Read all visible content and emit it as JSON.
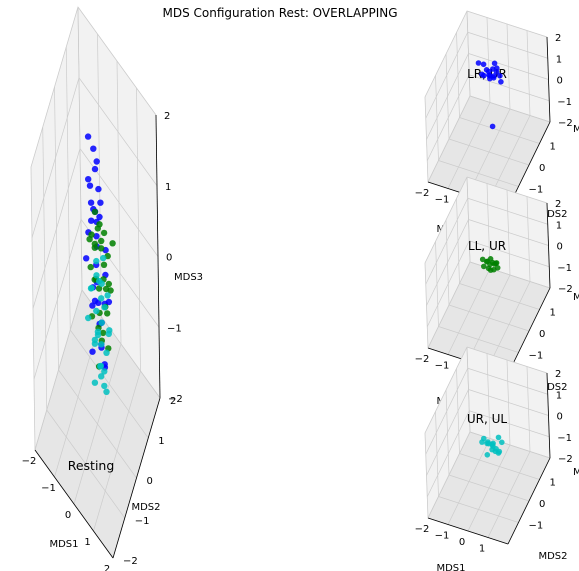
{
  "figure": {
    "title": "MDS Configuration Rest: OVERLAPPING"
  },
  "colors": {
    "pane": "#f2f2f2",
    "pane_dark": "#e6e6e6",
    "grid": "#cccccc",
    "blue": "#0000ff",
    "green": "#008000",
    "cyan": "#00bfbf"
  },
  "chart_data": [
    {
      "type": "scatter3d",
      "title": "",
      "annotation": "Resting",
      "xlabel": "MDS1",
      "ylabel": "MDS2",
      "zlabel": "MDS3",
      "xticks": [
        "−2",
        "−1",
        "0",
        "1",
        "2"
      ],
      "yticks": [
        "−2",
        "−1",
        "0",
        "1",
        "2"
      ],
      "zticks": [
        "−2",
        "−1",
        "0",
        "1",
        "2"
      ],
      "xlim": [
        -2,
        2
      ],
      "ylim": [
        -2,
        2
      ],
      "zlim": [
        -2,
        2
      ],
      "grid": true,
      "series": [
        {
          "color": "blue",
          "points": [
            [
              -0.6,
              0.5,
              1.55
            ],
            [
              -0.4,
              0.6,
              1.4
            ],
            [
              -0.2,
              0.4,
              1.3
            ],
            [
              -0.3,
              0.7,
              1.2
            ],
            [
              -0.5,
              0.3,
              1.1
            ],
            [
              -0.1,
              0.5,
              1.0
            ],
            [
              -0.3,
              0.2,
              0.9
            ],
            [
              -0.6,
              0.6,
              0.8
            ],
            [
              0.0,
              0.4,
              0.7
            ],
            [
              -0.2,
              0.8,
              0.6
            ],
            [
              -0.4,
              0.1,
              0.5
            ],
            [
              -0.5,
              0.5,
              0.4
            ],
            [
              -0.1,
              0.3,
              0.3
            ],
            [
              -0.3,
              0.6,
              0.2
            ],
            [
              0.1,
              0.7,
              0.1
            ],
            [
              -0.6,
              0.2,
              0.0
            ],
            [
              0.2,
              0.5,
              -0.1
            ],
            [
              -0.2,
              0.1,
              -0.2
            ],
            [
              -0.4,
              0.7,
              -0.3
            ],
            [
              0.0,
              0.2,
              -0.4
            ],
            [
              0.3,
              0.6,
              -0.5
            ],
            [
              -0.3,
              0.4,
              -0.6
            ],
            [
              0.1,
              0.3,
              -0.7
            ],
            [
              -0.5,
              0.5,
              -0.8
            ],
            [
              0.2,
              0.1,
              -0.9
            ],
            [
              -0.2,
              0.6,
              -1.0
            ],
            [
              0.0,
              0.4,
              -1.1
            ],
            [
              0.3,
              0.2,
              -1.2
            ],
            [
              -0.4,
              0.3,
              -1.3
            ],
            [
              0.1,
              0.5,
              -1.4
            ],
            [
              -0.1,
              0.2,
              0.85
            ],
            [
              -0.35,
              0.45,
              0.65
            ],
            [
              -0.25,
              0.55,
              0.45
            ],
            [
              -0.15,
              0.35,
              -0.25
            ],
            [
              0.05,
              0.65,
              -0.65
            ]
          ]
        },
        {
          "color": "green",
          "points": [
            [
              -0.3,
              0.5,
              0.6
            ],
            [
              -0.1,
              0.4,
              0.5
            ],
            [
              0.1,
              0.6,
              0.4
            ],
            [
              -0.2,
              0.3,
              0.3
            ],
            [
              0.0,
              0.5,
              0.2
            ],
            [
              0.2,
              0.4,
              0.1
            ],
            [
              -0.4,
              0.6,
              0.0
            ],
            [
              -0.1,
              0.2,
              -0.1
            ],
            [
              0.1,
              0.5,
              -0.2
            ],
            [
              -0.3,
              0.4,
              -0.3
            ],
            [
              0.3,
              0.3,
              -0.4
            ],
            [
              -0.2,
              0.6,
              -0.5
            ],
            [
              0.0,
              0.3,
              -0.6
            ],
            [
              0.2,
              0.6,
              -0.7
            ],
            [
              -0.4,
              0.3,
              -0.8
            ],
            [
              0.1,
              0.4,
              -0.9
            ],
            [
              -0.2,
              0.5,
              -1.0
            ],
            [
              0.3,
              0.5,
              -1.1
            ],
            [
              -0.1,
              0.6,
              -1.2
            ],
            [
              0.0,
              0.2,
              -1.3
            ],
            [
              0.4,
              0.4,
              0.3
            ],
            [
              -0.5,
              0.4,
              -0.2
            ],
            [
              0.4,
              0.6,
              -0.3
            ],
            [
              -0.6,
              0.5,
              0.1
            ],
            [
              0.5,
              0.3,
              0.0
            ],
            [
              0.2,
              0.2,
              0.55
            ],
            [
              -0.3,
              0.2,
              0.45
            ],
            [
              0.6,
              0.5,
              0.5
            ],
            [
              -0.2,
              0.7,
              0.35
            ],
            [
              0.1,
              0.7,
              -0.45
            ]
          ]
        },
        {
          "color": "cyan",
          "points": [
            [
              -0.2,
              0.4,
              -0.2
            ],
            [
              0.0,
              0.5,
              -0.3
            ],
            [
              -0.4,
              0.3,
              -0.4
            ],
            [
              0.2,
              0.4,
              -0.5
            ],
            [
              -0.1,
              0.6,
              -0.6
            ],
            [
              0.1,
              0.3,
              -0.7
            ],
            [
              -0.3,
              0.5,
              -0.8
            ],
            [
              0.3,
              0.6,
              -0.9
            ],
            [
              -0.2,
              0.2,
              -1.0
            ],
            [
              0.0,
              0.4,
              -1.1
            ],
            [
              0.2,
              0.5,
              -1.2
            ],
            [
              -0.4,
              0.5,
              -1.3
            ],
            [
              0.1,
              0.2,
              -1.4
            ],
            [
              -0.1,
              0.5,
              -1.5
            ],
            [
              0.3,
              0.3,
              -1.6
            ],
            [
              -0.3,
              0.3,
              -1.7
            ],
            [
              0.0,
              0.6,
              -1.8
            ],
            [
              -0.2,
              0.4,
              0.0
            ],
            [
              0.1,
              0.5,
              0.1
            ],
            [
              -0.5,
              0.4,
              -0.5
            ],
            [
              0.4,
              0.4,
              -0.8
            ],
            [
              -0.1,
              0.3,
              -0.95
            ],
            [
              0.2,
              0.3,
              -1.35
            ],
            [
              -0.3,
              0.6,
              -1.15
            ],
            [
              0.0,
              0.3,
              -0.15
            ],
            [
              -0.6,
              0.3,
              -0.9
            ],
            [
              0.3,
              0.5,
              -0.35
            ],
            [
              -0.2,
              0.6,
              -1.6
            ]
          ]
        }
      ]
    },
    {
      "type": "scatter3d",
      "title": "LR, UR",
      "xlabel": "MDS1",
      "ylabel": "MDS2",
      "zlabel": "M",
      "xticks": [
        "−2",
        "−1",
        "0",
        "1"
      ],
      "yticks": [
        "−1",
        "0",
        "1"
      ],
      "zticks": [
        "−2",
        "−1",
        "0",
        "1",
        "2"
      ],
      "xlim": [
        -2,
        2
      ],
      "ylim": [
        -2,
        2
      ],
      "zlim": [
        -2,
        2
      ],
      "grid": true,
      "series": [
        {
          "color": "blue",
          "points": [
            [
              -0.4,
              0.5,
              1.5
            ],
            [
              -0.2,
              0.4,
              1.4
            ],
            [
              0.0,
              0.6,
              1.3
            ],
            [
              -0.3,
              0.3,
              1.2
            ],
            [
              0.1,
              0.5,
              1.1
            ],
            [
              -0.1,
              0.4,
              1.35
            ],
            [
              0.2,
              0.3,
              1.25
            ],
            [
              -0.5,
              0.5,
              1.0
            ],
            [
              0.3,
              0.4,
              1.45
            ],
            [
              0.0,
              0.3,
              1.15
            ],
            [
              -0.2,
              0.6,
              0.95
            ],
            [
              0.4,
              0.5,
              1.2
            ],
            [
              -0.6,
              0.4,
              1.6
            ],
            [
              0.1,
              0.6,
              1.6
            ],
            [
              0.5,
              0.4,
              1.05
            ],
            [
              -0.1,
              0.5,
              1.05
            ],
            [
              0.2,
              0.6,
              1.4
            ],
            [
              0.0,
              0.4,
              -1.2
            ]
          ]
        }
      ]
    },
    {
      "type": "scatter3d",
      "title": "LL, UR",
      "xlabel": "MDS1",
      "ylabel": "MDS2",
      "zlabel": "M",
      "xticks": [
        "−2",
        "−1",
        "0",
        "1"
      ],
      "yticks": [
        "−1",
        "0",
        "1"
      ],
      "zticks": [
        "−2",
        "−1",
        "0",
        "1",
        "2"
      ],
      "xlim": [
        -2,
        2
      ],
      "ylim": [
        -2,
        2
      ],
      "zlim": [
        -2,
        2
      ],
      "grid": true,
      "series": [
        {
          "color": "green",
          "points": [
            [
              -0.2,
              0.4,
              0.2
            ],
            [
              0.0,
              0.5,
              0.1
            ],
            [
              -0.1,
              0.3,
              0.0
            ],
            [
              0.1,
              0.4,
              -0.1
            ],
            [
              -0.3,
              0.5,
              0.05
            ],
            [
              0.2,
              0.5,
              0.15
            ],
            [
              0.0,
              0.3,
              -0.05
            ],
            [
              -0.2,
              0.6,
              -0.15
            ],
            [
              0.1,
              0.6,
              0.0
            ],
            [
              -0.1,
              0.5,
              0.25
            ],
            [
              0.3,
              0.4,
              0.05
            ],
            [
              -0.4,
              0.4,
              -0.1
            ],
            [
              0.2,
              0.3,
              0.3
            ],
            [
              -0.5,
              0.5,
              0.1
            ]
          ]
        }
      ]
    },
    {
      "type": "scatter3d",
      "title": "UR, UL",
      "xlabel": "MDS1",
      "ylabel": "MDS2",
      "zlabel": "M",
      "xticks": [
        "−2",
        "−1",
        "0",
        "1"
      ],
      "yticks": [
        "−1",
        "0",
        "1"
      ],
      "zticks": [
        "−2",
        "−1",
        "0",
        "1",
        "2"
      ],
      "xlim": [
        -2,
        2
      ],
      "ylim": [
        -2,
        2
      ],
      "zlim": [
        -2,
        2
      ],
      "grid": true,
      "series": [
        {
          "color": "cyan",
          "points": [
            [
              -0.2,
              0.4,
              -0.3
            ],
            [
              0.0,
              0.5,
              -0.4
            ],
            [
              -0.4,
              0.4,
              -0.2
            ],
            [
              0.2,
              0.4,
              -0.5
            ],
            [
              -0.1,
              0.6,
              -0.6
            ],
            [
              0.1,
              0.3,
              -0.3
            ],
            [
              -0.3,
              0.5,
              -0.5
            ],
            [
              0.3,
              0.5,
              -0.7
            ],
            [
              -0.2,
              0.3,
              -0.8
            ],
            [
              0.0,
              0.4,
              -0.6
            ],
            [
              0.4,
              0.3,
              0.2
            ],
            [
              0.5,
              0.4,
              -0.1
            ],
            [
              -0.5,
              0.4,
              -0.4
            ],
            [
              0.2,
              0.6,
              -0.9
            ],
            [
              -0.1,
              0.3,
              -0.25
            ],
            [
              0.1,
              0.5,
              -0.75
            ]
          ]
        }
      ]
    }
  ]
}
